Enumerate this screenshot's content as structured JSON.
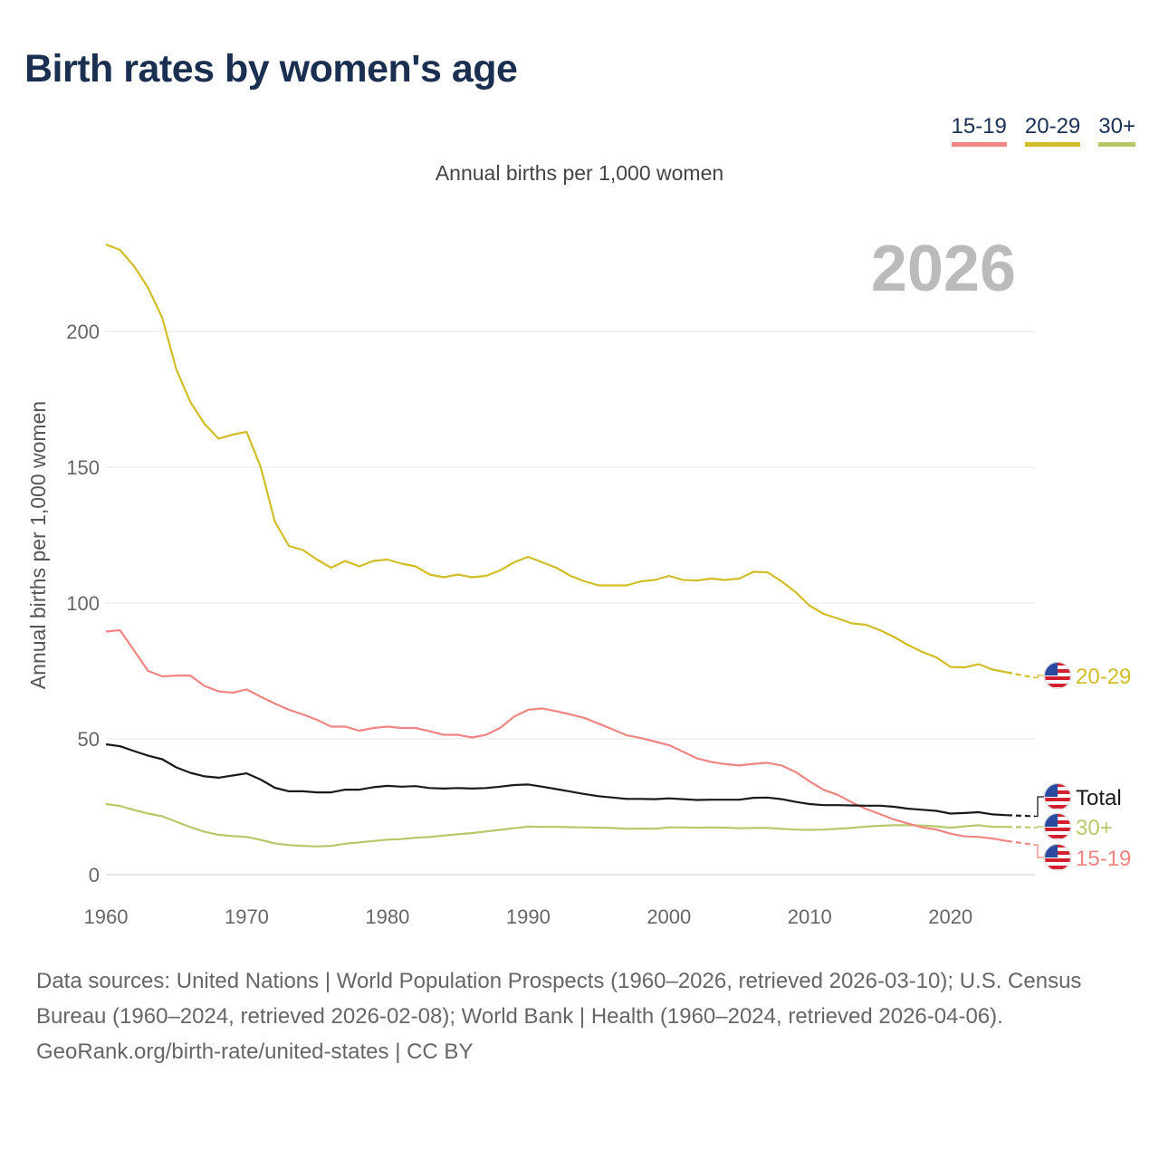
{
  "title": "Birth rates by women's age",
  "subtitle": "Annual births per 1,000 women",
  "footer": {
    "sources": "Data sources: United Nations | World Population Prospects (1960–2026, retrieved 2026-03-10); U.S. Census Bureau (1960–2024, retrieved 2026-02-08); World Bank | Health (1960–2024, retrieved 2026-04-06).",
    "credit": "GeoRank.org/birth-rate/united-states | CC BY"
  },
  "chart_data": {
    "type": "line",
    "title": "Birth rates by women's age",
    "ylabel": "Annual births per 1,000 women",
    "xlabel": "",
    "year_watermark": "2026",
    "xlim": [
      1960,
      2026
    ],
    "ylim": [
      0,
      240
    ],
    "xticks": [
      "1960",
      "1970",
      "1980",
      "1990",
      "2000",
      "2010",
      "2020"
    ],
    "yticks": [
      "0",
      "50",
      "100",
      "150",
      "200"
    ],
    "grid": true,
    "legend_placement": "top-right",
    "projected_from": 2024,
    "x_start": 1960,
    "series": [
      {
        "name": "15-19",
        "color": "#ef8683",
        "legend": true,
        "values": [
          89.5,
          90,
          82.5,
          75,
          73,
          73.3,
          73.3,
          69.5,
          67.5,
          67,
          68.2,
          65.5,
          63,
          60.7,
          59,
          57,
          54.5,
          54.5,
          53,
          54,
          54.5,
          54,
          54,
          52.8,
          51.5,
          51.5,
          50.5,
          51.5,
          54,
          58.2,
          60.7,
          61.2,
          60.2,
          59,
          57.7,
          55.6,
          53.5,
          51.3,
          50.3,
          49,
          47.7,
          45.3,
          42.8,
          41.5,
          40.7,
          40.2,
          40.8,
          41.2,
          40.2,
          37.8,
          34.3,
          31.2,
          29.4,
          26.6,
          24.2,
          22.3,
          20.3,
          18.8,
          17.4,
          16.6,
          15.1,
          14.1,
          13.9,
          13.3,
          12.4,
          11.7,
          11
        ]
      },
      {
        "name": "20-29",
        "color": "#d1bd27",
        "legend": true,
        "values": [
          232,
          230,
          224,
          216,
          205,
          186,
          174,
          166,
          160.5,
          162,
          163,
          150,
          130,
          121,
          119.5,
          116,
          113,
          115.5,
          113.5,
          115.5,
          116,
          114.5,
          113.5,
          110.5,
          109.5,
          110.5,
          109.5,
          110,
          112,
          115,
          117,
          115,
          113,
          110,
          108,
          106.5,
          106.5,
          106.5,
          108,
          108.5,
          110,
          108.5,
          108.3,
          109,
          108.5,
          109,
          111.5,
          111.3,
          108,
          104,
          99,
          96,
          94.3,
          92.5,
          92,
          90,
          87.5,
          84.5,
          82,
          80,
          76.5,
          76.3,
          77.5,
          75.5,
          74.5,
          73.5,
          72.5
        ]
      },
      {
        "name": "30+",
        "color": "#b5c96a",
        "legend": true,
        "values": [
          26,
          25.3,
          23.8,
          22.5,
          21.5,
          19.5,
          17.5,
          15.8,
          14.7,
          14.2,
          13.9,
          12.8,
          11.5,
          10.9,
          10.6,
          10.4,
          10.6,
          11.4,
          11.9,
          12.4,
          12.9,
          13.1,
          13.6,
          13.9,
          14.4,
          14.9,
          15.3,
          15.9,
          16.5,
          17.1,
          17.7,
          17.6,
          17.6,
          17.5,
          17.4,
          17.3,
          17.2,
          16.9,
          17,
          16.9,
          17.4,
          17.4,
          17.3,
          17.4,
          17.3,
          17.1,
          17.2,
          17.2,
          16.9,
          16.6,
          16.5,
          16.6,
          16.9,
          17.2,
          17.7,
          18,
          18.2,
          18.2,
          18.1,
          17.8,
          17.3,
          17.8,
          18.2,
          17.6,
          17.6,
          17.5,
          17.4
        ]
      },
      {
        "name": "Total",
        "color": "#1a1a1a",
        "legend": false,
        "values": [
          48,
          47.3,
          45.5,
          43.8,
          42.5,
          39.5,
          37.5,
          36.2,
          35.7,
          36.5,
          37.3,
          35,
          32,
          30.7,
          30.7,
          30.3,
          30.3,
          31.3,
          31.3,
          32.2,
          32.7,
          32.4,
          32.6,
          31.9,
          31.7,
          31.9,
          31.7,
          31.9,
          32.4,
          33,
          33.2,
          32.4,
          31.5,
          30.6,
          29.7,
          28.9,
          28.4,
          27.9,
          27.9,
          27.8,
          28.1,
          27.8,
          27.5,
          27.6,
          27.6,
          27.6,
          28.3,
          28.4,
          27.8,
          26.8,
          26,
          25.6,
          25.6,
          25.5,
          25.4,
          25.4,
          25,
          24.3,
          23.9,
          23.5,
          22.5,
          22.7,
          23,
          22.2,
          21.9,
          21.7,
          21.5
        ]
      }
    ]
  }
}
